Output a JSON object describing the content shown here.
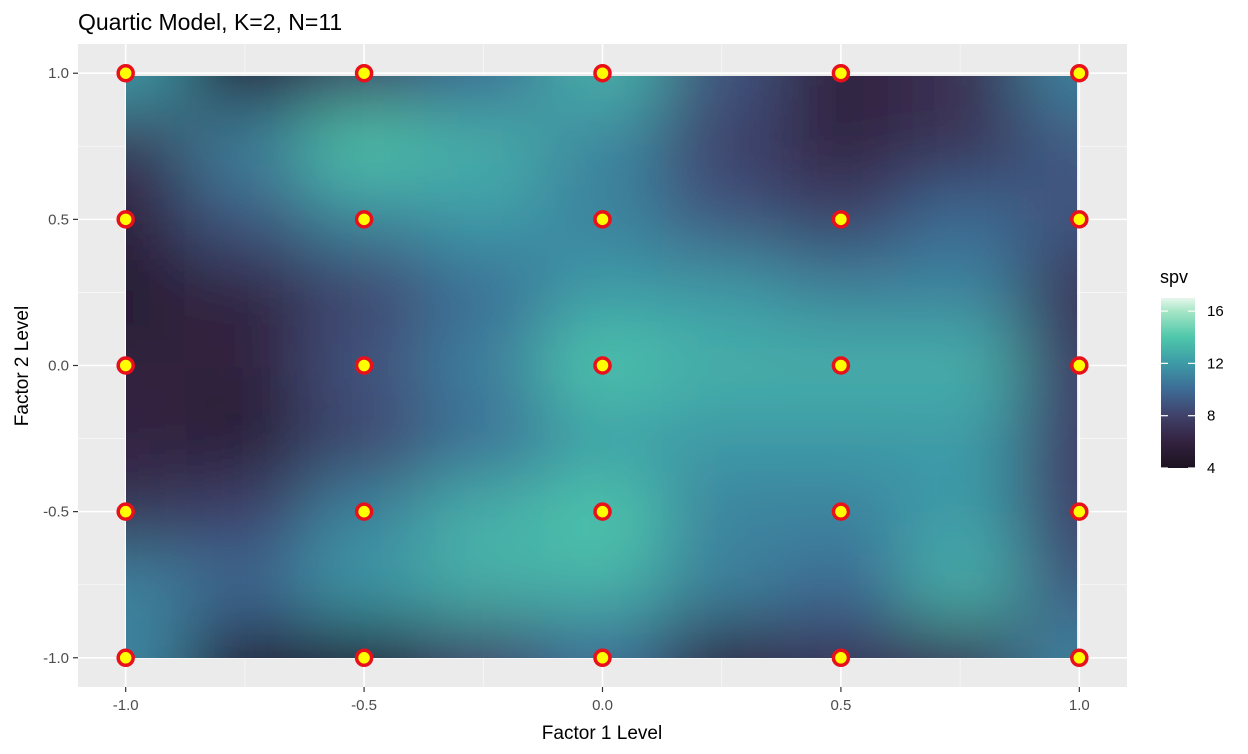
{
  "chart_data": {
    "type": "heatmap",
    "title": "Quartic Model, K=2, N=11",
    "xlabel": "Factor 1 Level",
    "ylabel": "Factor 2 Level",
    "xlim": [
      -1.1,
      1.1
    ],
    "ylim": [
      -1.1,
      1.1
    ],
    "x_ticks": [
      -1.0,
      -0.5,
      0.0,
      0.5,
      1.0
    ],
    "x_tick_labels": [
      "-1.0",
      "-0.5",
      "0.0",
      "0.5",
      "1.0"
    ],
    "y_ticks": [
      -1.0,
      -0.5,
      0.0,
      0.5,
      1.0
    ],
    "y_tick_labels": [
      "-1.0",
      "-0.5",
      "0.0",
      "0.5",
      "1.0"
    ],
    "grid": true,
    "panel_background": "#ebebeb",
    "legend": {
      "title": "spv",
      "position": "right",
      "ticks": [
        16,
        12,
        8,
        4
      ],
      "tick_labels": [
        "16",
        "12",
        "8",
        "4"
      ],
      "range": [
        4,
        17
      ]
    },
    "colorscale": [
      {
        "value": 4,
        "color": "#1c1220"
      },
      {
        "value": 6,
        "color": "#33223f"
      },
      {
        "value": 8,
        "color": "#40416a"
      },
      {
        "value": 10,
        "color": "#3d6b95"
      },
      {
        "value": 12,
        "color": "#3d9aa7"
      },
      {
        "value": 14,
        "color": "#4ec7aa"
      },
      {
        "value": 16,
        "color": "#a6e6c6"
      },
      {
        "value": 17,
        "color": "#e6f7ec"
      }
    ],
    "spv_grid": {
      "x": [
        -1.0,
        -0.75,
        -0.5,
        -0.25,
        0.0,
        0.25,
        0.5,
        0.75,
        1.0
      ],
      "y": [
        1.0,
        0.75,
        0.5,
        0.25,
        0.0,
        -0.25,
        -0.5,
        -0.75,
        -1.0
      ],
      "z": [
        [
          12,
          5,
          8,
          10,
          13,
          9,
          6,
          7,
          11
        ],
        [
          7,
          11,
          14,
          13,
          11,
          8,
          6,
          7,
          9
        ],
        [
          6,
          9,
          11,
          12,
          11,
          9,
          8,
          10,
          9
        ],
        [
          5,
          6,
          8,
          10,
          12,
          12,
          11,
          11,
          7
        ],
        [
          6,
          6,
          9,
          11,
          14,
          13,
          13,
          13,
          8
        ],
        [
          6,
          5,
          8,
          10,
          12,
          12,
          12,
          12,
          8
        ],
        [
          7,
          8,
          11,
          13,
          14,
          11,
          11,
          12,
          8
        ],
        [
          11,
          10,
          12,
          13,
          13,
          11,
          10,
          13,
          9
        ],
        [
          11,
          5,
          5,
          8,
          10,
          6,
          7,
          7,
          11
        ]
      ]
    },
    "design_points": [
      {
        "x": -1.0,
        "y": 1.0
      },
      {
        "x": -0.5,
        "y": 1.0
      },
      {
        "x": 0.0,
        "y": 1.0
      },
      {
        "x": 0.5,
        "y": 1.0
      },
      {
        "x": 1.0,
        "y": 1.0
      },
      {
        "x": -1.0,
        "y": 0.5
      },
      {
        "x": -0.5,
        "y": 0.5
      },
      {
        "x": 0.0,
        "y": 0.5
      },
      {
        "x": 0.5,
        "y": 0.5
      },
      {
        "x": 1.0,
        "y": 0.5
      },
      {
        "x": -1.0,
        "y": 0.0
      },
      {
        "x": -0.5,
        "y": 0.0
      },
      {
        "x": 0.0,
        "y": 0.0
      },
      {
        "x": 0.5,
        "y": 0.0
      },
      {
        "x": 1.0,
        "y": 0.0
      },
      {
        "x": -1.0,
        "y": -0.5
      },
      {
        "x": -0.5,
        "y": -0.5
      },
      {
        "x": 0.0,
        "y": -0.5
      },
      {
        "x": 0.5,
        "y": -0.5
      },
      {
        "x": 1.0,
        "y": -0.5
      },
      {
        "x": -1.0,
        "y": -1.0
      },
      {
        "x": -0.5,
        "y": -1.0
      },
      {
        "x": 0.0,
        "y": -1.0
      },
      {
        "x": 0.5,
        "y": -1.0
      },
      {
        "x": 1.0,
        "y": -1.0
      }
    ],
    "point_fill": "#ffff00",
    "point_stroke": "#e8101a"
  }
}
